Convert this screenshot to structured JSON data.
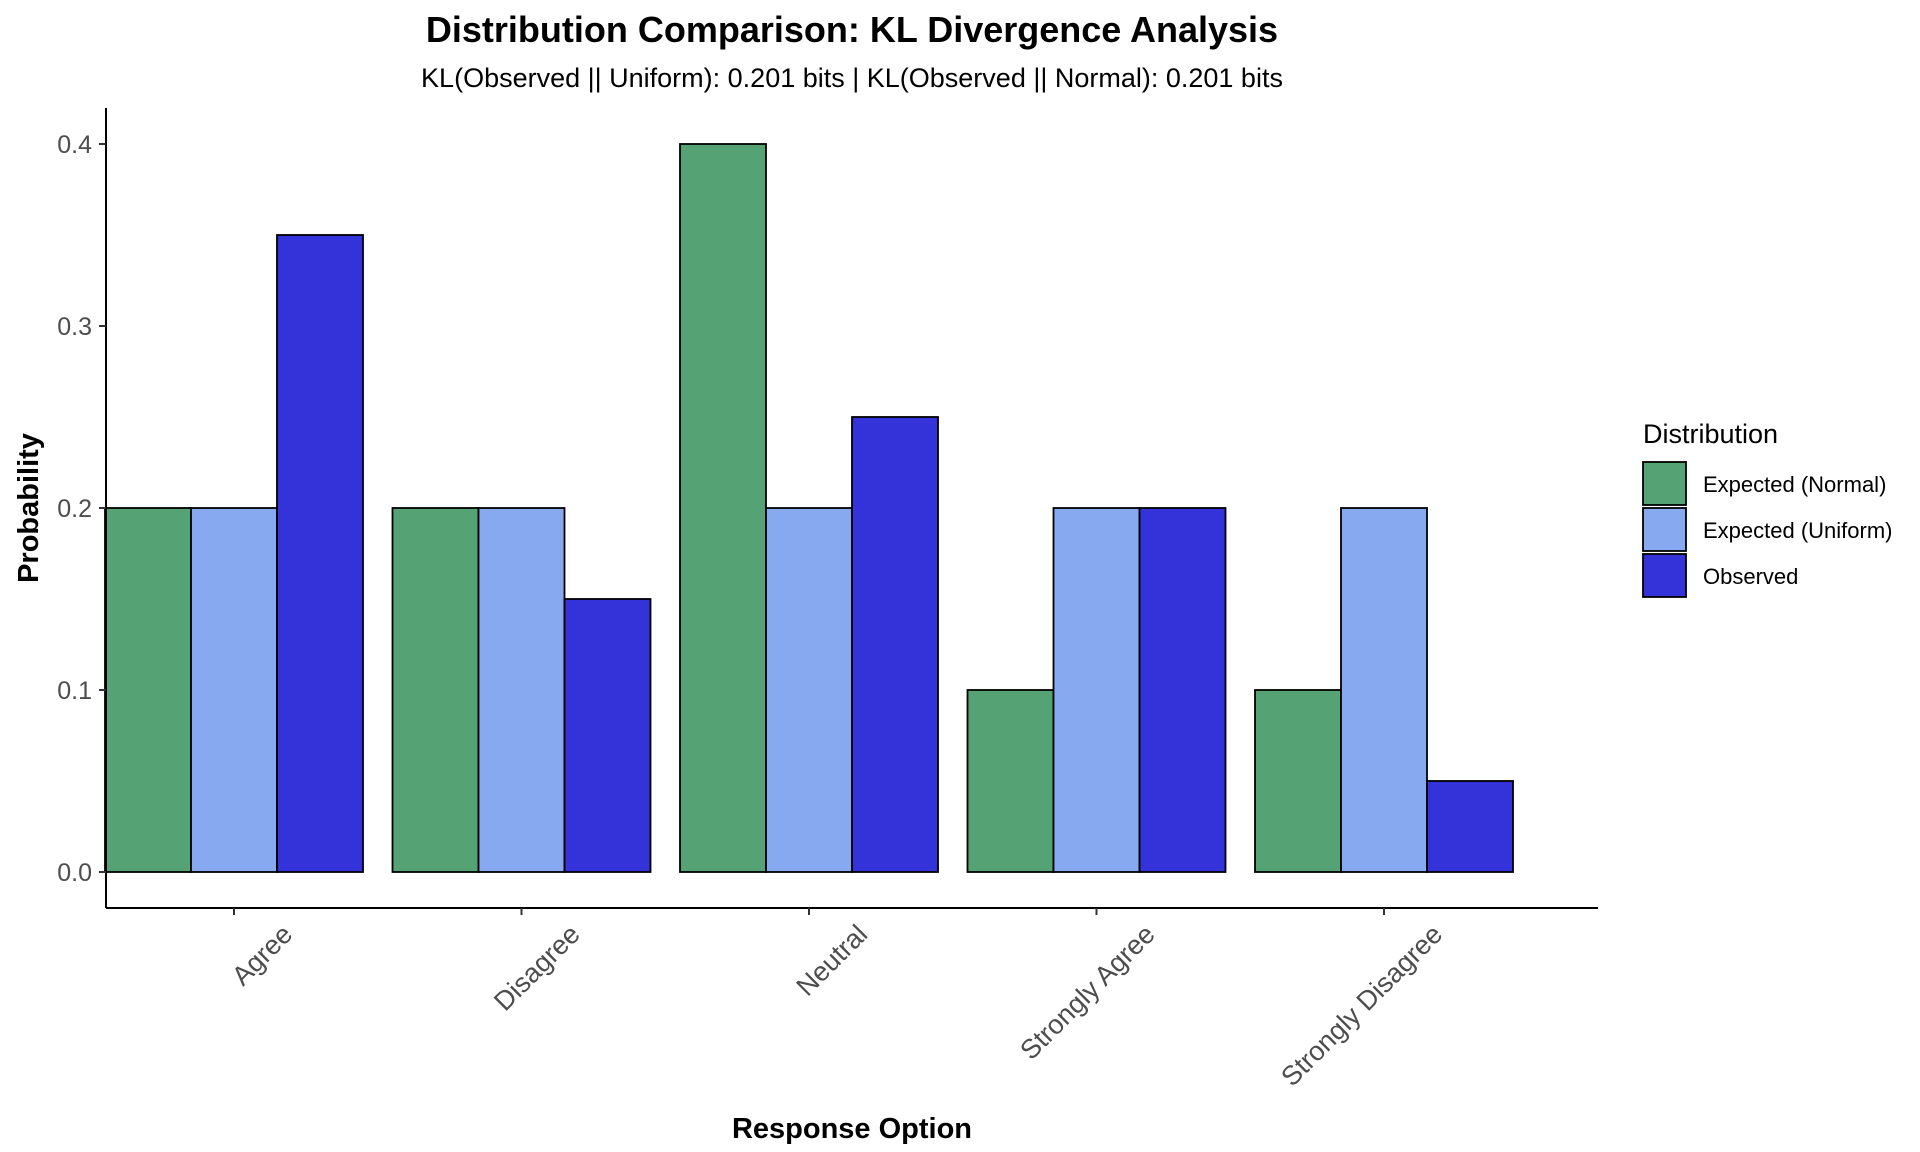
{
  "chart_data": {
    "type": "bar",
    "title": "Distribution Comparison: KL Divergence Analysis",
    "subtitle": "KL(Observed || Uniform): 0.201 bits | KL(Observed || Normal): 0.201 bits",
    "xlabel": "Response Option",
    "ylabel": "Probability",
    "categories": [
      "Agree",
      "Disagree",
      "Neutral",
      "Strongly Agree",
      "Strongly Disagree"
    ],
    "series": [
      {
        "name": "Expected (Normal)",
        "color": "#55a275",
        "values": [
          0.2,
          0.2,
          0.4,
          0.1,
          0.1
        ]
      },
      {
        "name": "Expected (Uniform)",
        "color": "#86a9ef",
        "values": [
          0.2,
          0.2,
          0.2,
          0.2,
          0.2
        ]
      },
      {
        "name": "Observed",
        "color": "#3333d9",
        "values": [
          0.35,
          0.15,
          0.25,
          0.2,
          0.05
        ]
      }
    ],
    "ylim": [
      0,
      0.42
    ],
    "yticks": [
      0.0,
      0.1,
      0.2,
      0.3,
      0.4
    ],
    "ytick_labels": [
      "0.0",
      "0.1",
      "0.2",
      "0.3",
      "0.4"
    ],
    "grid": false,
    "legend": {
      "title": "Distribution",
      "position": "right"
    }
  }
}
